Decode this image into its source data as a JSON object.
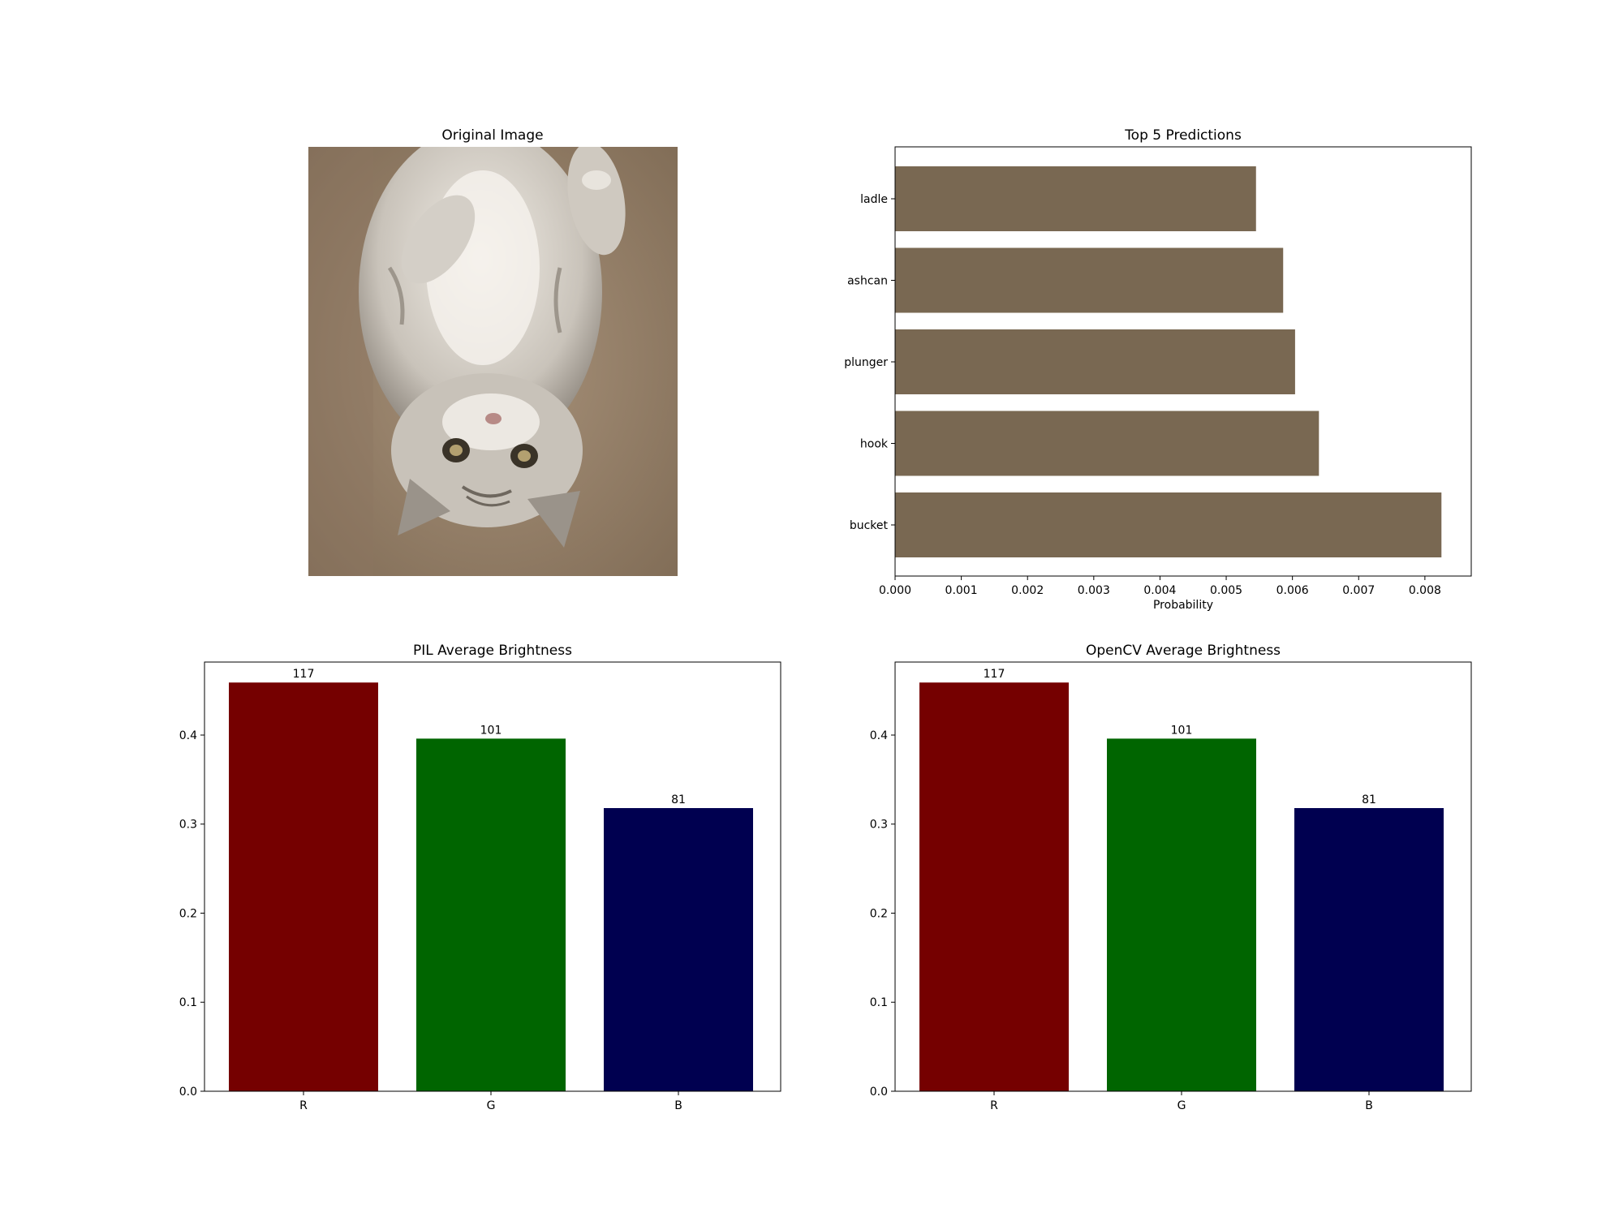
{
  "image_panel": {
    "title": "Original Image"
  },
  "chart_data": [
    {
      "type": "bar",
      "orientation": "horizontal",
      "title": "Top 5 Predictions",
      "xlabel": "Probability",
      "ylabel": "",
      "categories": [
        "bucket",
        "hook",
        "plunger",
        "ashcan",
        "ladle"
      ],
      "values": [
        0.00825,
        0.0064,
        0.00604,
        0.00586,
        0.00545
      ],
      "xlim": [
        0,
        0.0087
      ],
      "xticks": [
        0.0,
        0.001,
        0.002,
        0.003,
        0.004,
        0.005,
        0.006,
        0.007,
        0.008
      ],
      "xtick_labels": [
        "0.000",
        "0.001",
        "0.002",
        "0.003",
        "0.004",
        "0.005",
        "0.006",
        "0.007",
        "0.008"
      ],
      "bar_color": "#796852",
      "grid": false,
      "legend": "none"
    },
    {
      "type": "bar",
      "title": "PIL Average Brightness",
      "xlabel": "",
      "ylabel": "",
      "categories": [
        "R",
        "G",
        "B"
      ],
      "values": [
        0.459,
        0.396,
        0.318
      ],
      "data_labels": [
        "117",
        "101",
        "81"
      ],
      "colors": [
        "#750000",
        "#006500",
        "#000050"
      ],
      "ylim": [
        0,
        0.482
      ],
      "yticks": [
        0.0,
        0.1,
        0.2,
        0.3,
        0.4
      ],
      "ytick_labels": [
        "0.0",
        "0.1",
        "0.2",
        "0.3",
        "0.4"
      ],
      "grid": false,
      "legend": "none"
    },
    {
      "type": "bar",
      "title": "OpenCV Average Brightness",
      "xlabel": "",
      "ylabel": "",
      "categories": [
        "R",
        "G",
        "B"
      ],
      "values": [
        0.459,
        0.396,
        0.318
      ],
      "data_labels": [
        "117",
        "101",
        "81"
      ],
      "colors": [
        "#750000",
        "#006500",
        "#000050"
      ],
      "ylim": [
        0,
        0.482
      ],
      "yticks": [
        0.0,
        0.1,
        0.2,
        0.3,
        0.4
      ],
      "ytick_labels": [
        "0.0",
        "0.1",
        "0.2",
        "0.3",
        "0.4"
      ],
      "grid": false,
      "legend": "none"
    }
  ]
}
